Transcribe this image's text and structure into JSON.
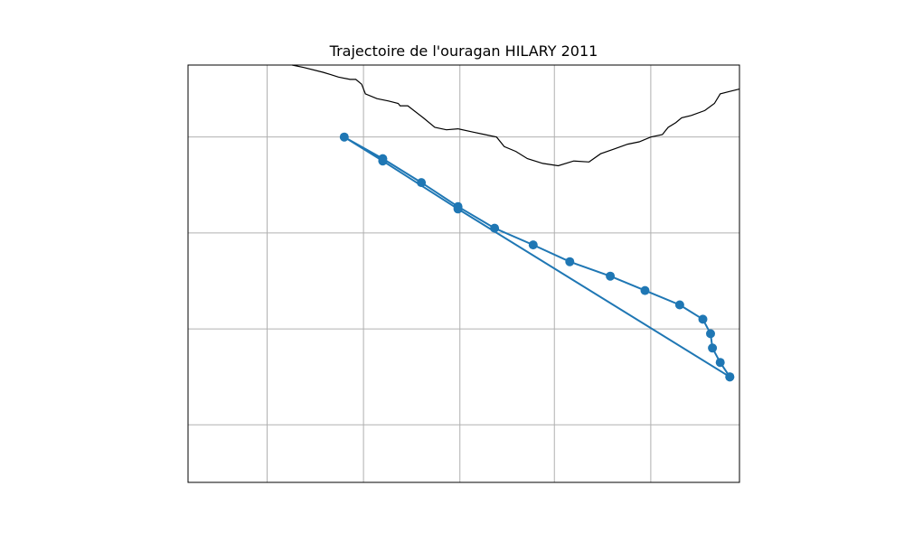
{
  "title": "Trajectoire de l'ouragan HILARY 2011",
  "colors": {
    "track": "#1f77b4",
    "coast": "#000000",
    "grid": "#b0b0b0",
    "frame": "#000000"
  },
  "map": {
    "lon_range": [
      -110.0,
      -95.7
    ],
    "lat_range": [
      11.0,
      19.7
    ],
    "gridlines_lon": [
      -107.95,
      -105.45,
      -102.95,
      -100.5,
      -98.0
    ],
    "gridlines_lat": [
      12.2,
      14.2,
      16.2,
      18.2
    ],
    "grid": true
  },
  "coastline": [
    [
      -107.3,
      19.7
    ],
    [
      -107.0,
      19.65
    ],
    [
      -106.5,
      19.55
    ],
    [
      -106.3,
      19.5
    ],
    [
      -106.1,
      19.45
    ],
    [
      -105.8,
      19.4
    ],
    [
      -105.65,
      19.4
    ],
    [
      -105.5,
      19.3
    ],
    [
      -105.4,
      19.1
    ],
    [
      -105.1,
      19.0
    ],
    [
      -104.8,
      18.95
    ],
    [
      -104.55,
      18.9
    ],
    [
      -104.5,
      18.85
    ],
    [
      -104.3,
      18.85
    ],
    [
      -103.9,
      18.6
    ],
    [
      -103.6,
      18.4
    ],
    [
      -103.3,
      18.35
    ],
    [
      -103.0,
      18.37
    ],
    [
      -102.6,
      18.3
    ],
    [
      -102.3,
      18.25
    ],
    [
      -102.0,
      18.2
    ],
    [
      -101.8,
      18.0
    ],
    [
      -101.5,
      17.9
    ],
    [
      -101.2,
      17.75
    ],
    [
      -100.8,
      17.65
    ],
    [
      -100.4,
      17.6
    ],
    [
      -100.0,
      17.7
    ],
    [
      -99.6,
      17.68
    ],
    [
      -99.3,
      17.85
    ],
    [
      -98.95,
      17.95
    ],
    [
      -98.6,
      18.05
    ],
    [
      -98.3,
      18.1
    ],
    [
      -98.0,
      18.2
    ],
    [
      -97.7,
      18.25
    ],
    [
      -97.55,
      18.4
    ],
    [
      -97.35,
      18.5
    ],
    [
      -97.2,
      18.6
    ],
    [
      -96.95,
      18.65
    ],
    [
      -96.6,
      18.75
    ],
    [
      -96.35,
      18.9
    ],
    [
      -96.2,
      19.1
    ],
    [
      -95.95,
      19.15
    ],
    [
      -95.7,
      19.2
    ]
  ],
  "track": [
    {
      "lon": -95.95,
      "lat": 13.2
    },
    {
      "lon": -96.2,
      "lat": 13.5
    },
    {
      "lon": -96.4,
      "lat": 13.8
    },
    {
      "lon": -96.45,
      "lat": 14.1
    },
    {
      "lon": -96.65,
      "lat": 14.4
    },
    {
      "lon": -97.25,
      "lat": 14.7
    },
    {
      "lon": -98.15,
      "lat": 15.0
    },
    {
      "lon": -99.05,
      "lat": 15.3
    },
    {
      "lon": -100.1,
      "lat": 15.6
    },
    {
      "lon": -101.05,
      "lat": 15.95
    },
    {
      "lon": -102.05,
      "lat": 16.3
    },
    {
      "lon": -103.0,
      "lat": 16.75
    },
    {
      "lon": -103.95,
      "lat": 17.25
    },
    {
      "lon": -104.95,
      "lat": 17.75
    },
    {
      "lon": -105.95,
      "lat": 18.2
    },
    {
      "lon": -104.95,
      "lat": 17.7
    },
    {
      "lon": -103.0,
      "lat": 16.7
    },
    {
      "lon": -95.95,
      "lat": 13.2
    }
  ]
}
